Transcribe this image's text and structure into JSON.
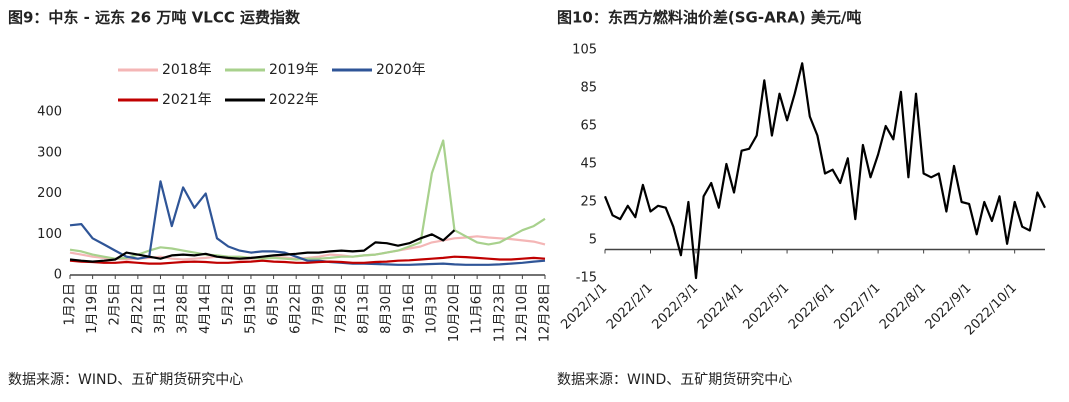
{
  "chart_data": [
    {
      "type": "line",
      "title": "图9：中东 - 远东 26 万吨 VLCC 运费指数",
      "source": "数据来源：WIND、五矿期货研究中心",
      "categories": [
        "1月2日",
        null,
        "1月19日",
        null,
        "2月5日",
        null,
        "2月22日",
        null,
        "3月11日",
        null,
        "3月28日",
        null,
        "4月14日",
        null,
        "5月2日",
        null,
        "5月19日",
        null,
        "6月5日",
        null,
        "6月22日",
        null,
        "7月9日",
        null,
        "7月26日",
        null,
        "8月13日",
        null,
        "8月30日",
        null,
        "9月16日",
        null,
        "10月3日",
        null,
        "10月20日",
        null,
        "11月6日",
        null,
        "11月23日",
        null,
        "12月10日",
        null,
        "12月28日"
      ],
      "series": [
        {
          "name": "2018年",
          "color": "#f4b6b6",
          "values": [
            55,
            50,
            45,
            42,
            40,
            38,
            40,
            42,
            45,
            40,
            38,
            40,
            42,
            45,
            40,
            38,
            40,
            42,
            45,
            43,
            40,
            42,
            45,
            50,
            48,
            45,
            48,
            50,
            55,
            60,
            65,
            70,
            80,
            85,
            90,
            92,
            95,
            92,
            90,
            88,
            85,
            82,
            75
          ]
        },
        {
          "name": "2019年",
          "color": "#a8d18d",
          "values": [
            62,
            58,
            50,
            45,
            40,
            42,
            50,
            60,
            68,
            65,
            60,
            55,
            50,
            48,
            45,
            45,
            42,
            40,
            42,
            40,
            38,
            40,
            40,
            42,
            45,
            45,
            48,
            50,
            55,
            60,
            70,
            80,
            250,
            330,
            110,
            95,
            80,
            75,
            80,
            95,
            110,
            120,
            138
          ]
        },
        {
          "name": "2020年",
          "color": "#2f5597",
          "values": [
            122,
            125,
            90,
            75,
            60,
            45,
            40,
            45,
            230,
            120,
            215,
            165,
            200,
            90,
            70,
            60,
            55,
            58,
            58,
            55,
            45,
            35,
            35,
            32,
            30,
            28,
            28,
            27,
            26,
            25,
            25,
            26,
            27,
            28,
            26,
            25,
            25,
            25,
            26,
            28,
            30,
            33,
            35
          ]
        },
        {
          "name": "2021年",
          "color": "#c00000",
          "values": [
            35,
            33,
            32,
            30,
            30,
            32,
            30,
            28,
            28,
            30,
            32,
            33,
            32,
            30,
            30,
            32,
            33,
            35,
            33,
            32,
            30,
            30,
            32,
            33,
            32,
            30,
            30,
            32,
            33,
            35,
            36,
            38,
            40,
            42,
            45,
            44,
            42,
            40,
            38,
            38,
            40,
            42,
            40
          ]
        },
        {
          "name": "2022年",
          "color": "#000000",
          "values": [
            38,
            35,
            33,
            35,
            38,
            55,
            50,
            45,
            40,
            48,
            50,
            48,
            52,
            45,
            42,
            40,
            42,
            45,
            48,
            50,
            52,
            55,
            55,
            58,
            60,
            58,
            60,
            80,
            78,
            72,
            78,
            90,
            100,
            85,
            110,
            null,
            null,
            null,
            null,
            null,
            null,
            null,
            null
          ]
        }
      ],
      "ylim": [
        0,
        400
      ],
      "yticks": [
        0,
        100,
        200,
        300,
        400
      ],
      "grid": false,
      "legend": "top"
    },
    {
      "type": "line",
      "title": "图10：东西方燃料油价差(SG-ARA) 美元/吨",
      "source": "数据来源：WIND、五矿期货研究中心",
      "categories": [
        "2022/1/1",
        null,
        null,
        null,
        null,
        null,
        "2022/2/1",
        null,
        null,
        null,
        null,
        null,
        "2022/3/1",
        null,
        null,
        null,
        null,
        null,
        "2022/4/1",
        null,
        null,
        null,
        null,
        null,
        "2022/5/1",
        null,
        null,
        null,
        null,
        null,
        "2022/6/1",
        null,
        null,
        null,
        null,
        null,
        "2022/7/1",
        null,
        null,
        null,
        null,
        null,
        "2022/8/1",
        null,
        null,
        null,
        null,
        null,
        "2022/9/1",
        null,
        null,
        null,
        null,
        null,
        "2022/10/1",
        null,
        null,
        null,
        null
      ],
      "values": [
        28,
        18,
        16,
        23,
        17,
        34,
        20,
        23,
        22,
        12,
        -3,
        25,
        -15,
        28,
        35,
        22,
        45,
        30,
        52,
        53,
        60,
        89,
        60,
        82,
        68,
        82,
        98,
        70,
        60,
        40,
        42,
        35,
        48,
        16,
        55,
        38,
        50,
        65,
        58,
        83,
        38,
        82,
        40,
        38,
        40,
        20,
        44,
        25,
        24,
        8,
        25,
        15,
        28,
        3,
        25,
        12,
        10,
        30,
        22
      ],
      "color": "#000000",
      "ylim": [
        -15,
        105
      ],
      "yticks": [
        -15,
        5,
        25,
        45,
        65,
        85,
        105
      ],
      "grid": false
    }
  ]
}
